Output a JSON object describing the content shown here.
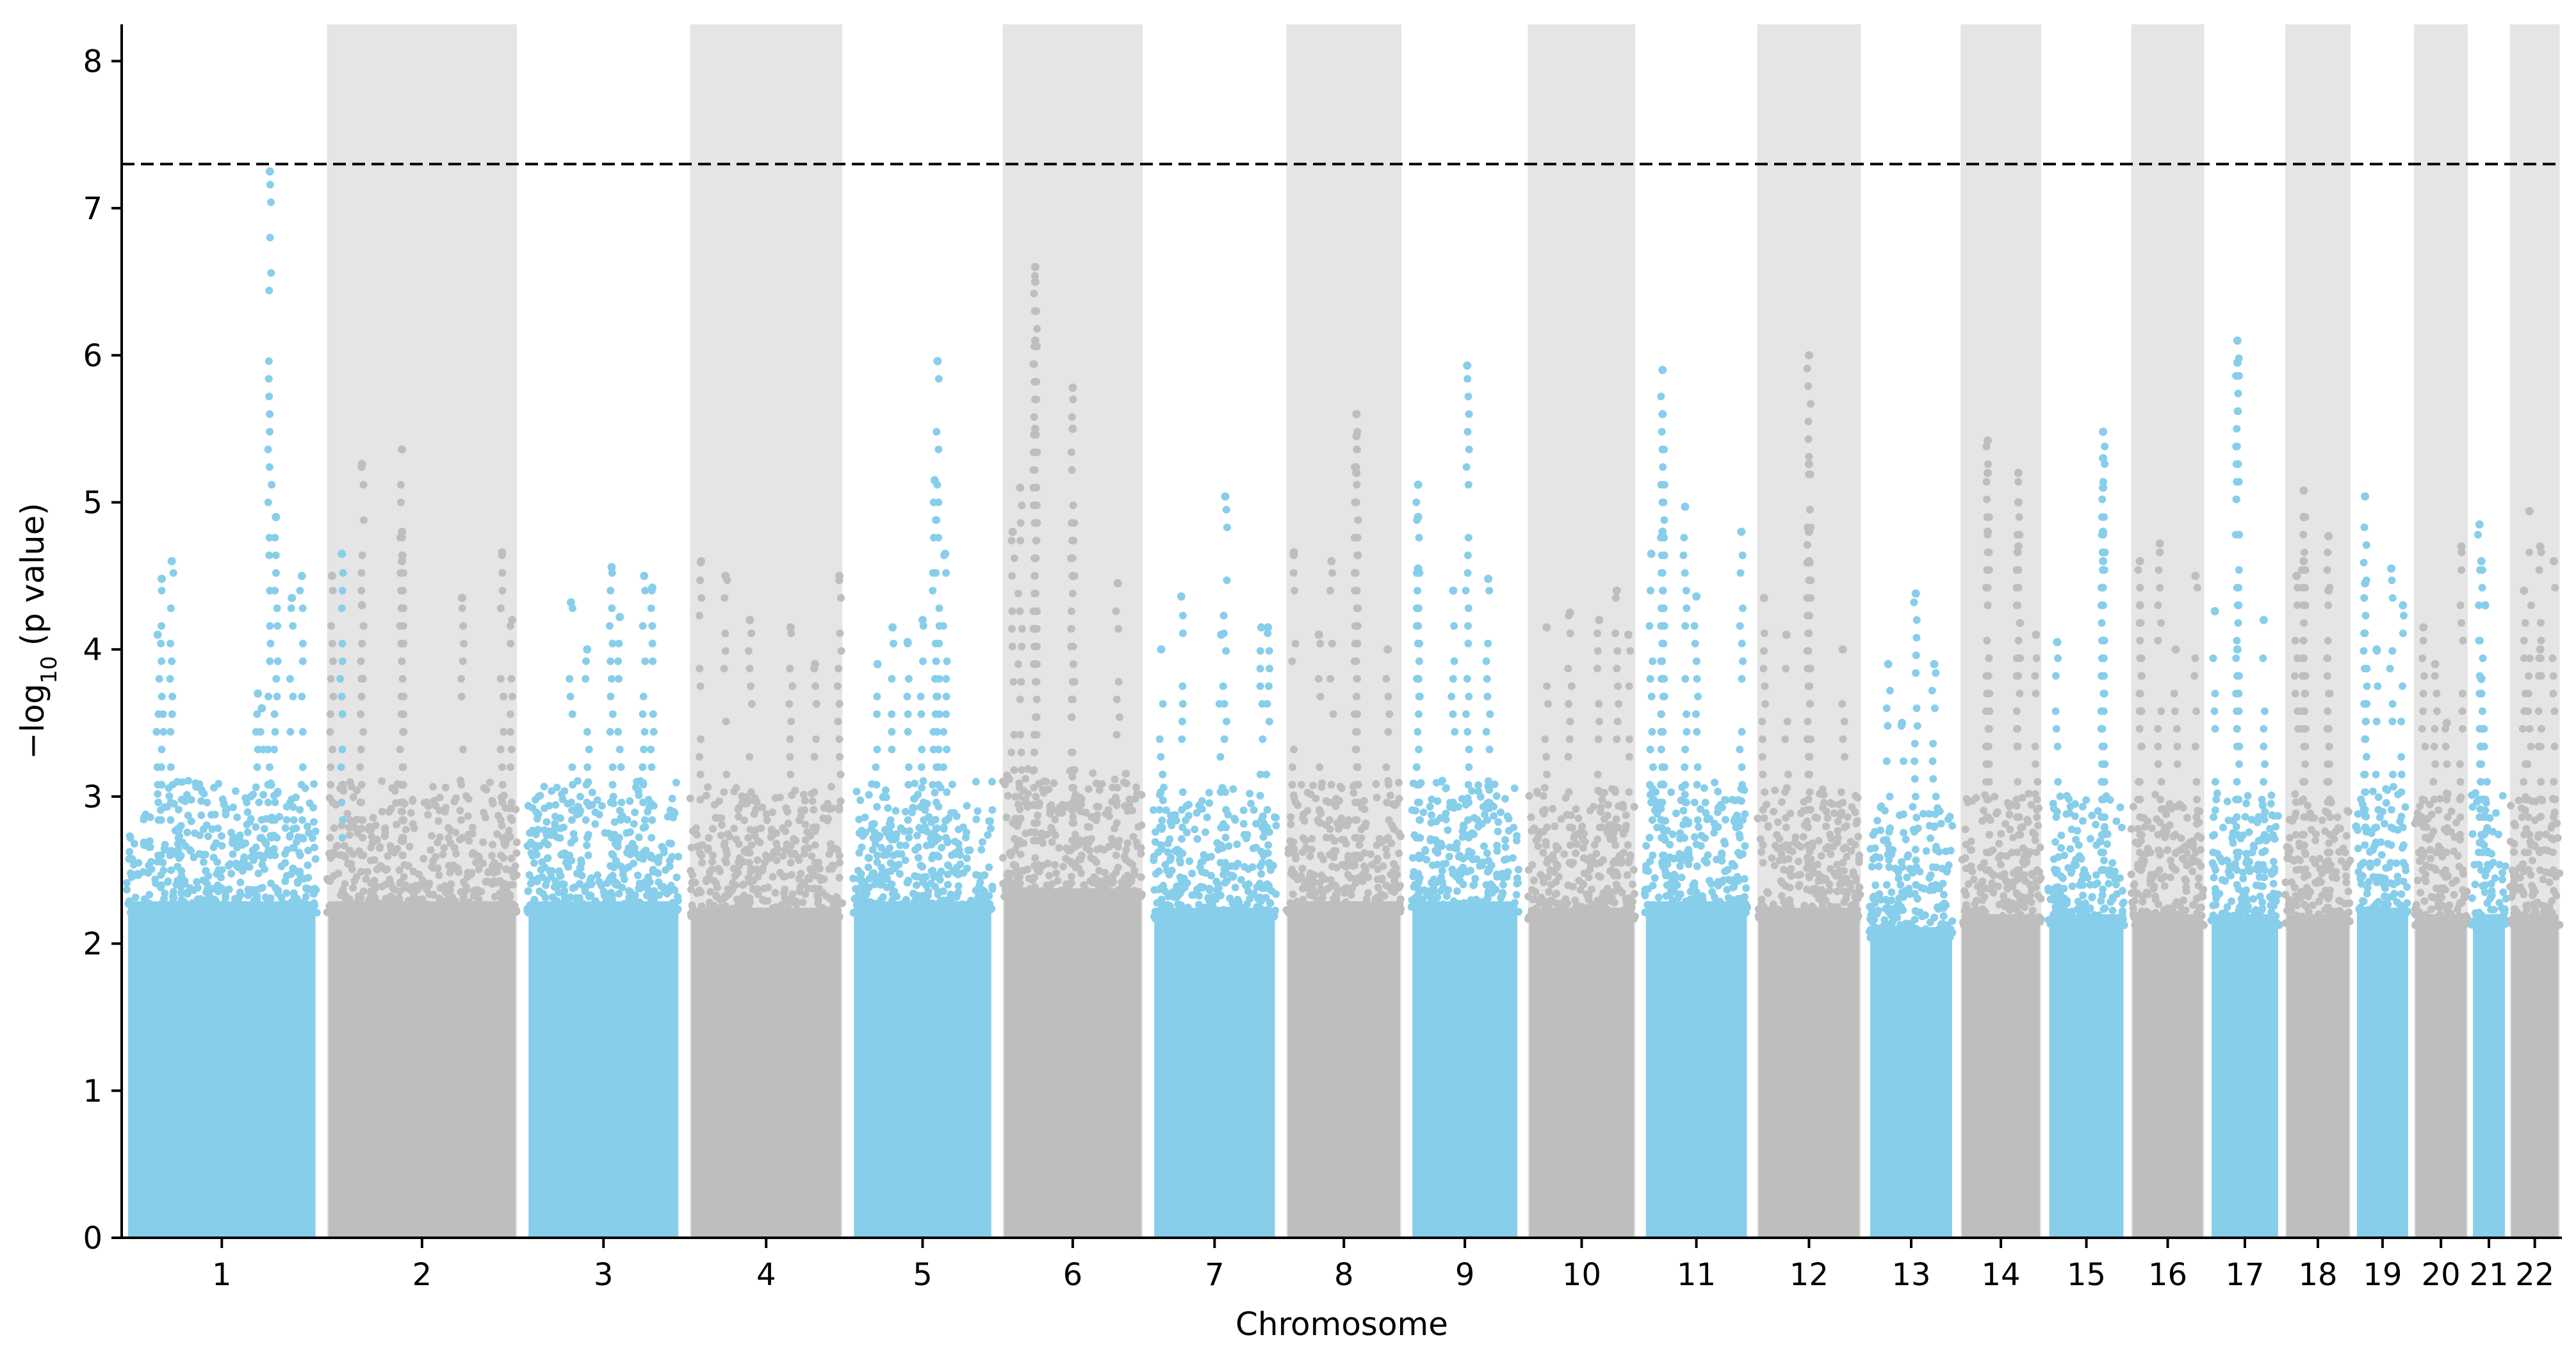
{
  "chart_data": {
    "type": "scatter",
    "subtype": "manhattan",
    "title": "",
    "xlabel": "Chromosome",
    "ylabel": "−log",
    "ylabel_sub": "10",
    "ylabel_suffix": " (p value)",
    "ylim": [
      0,
      8.25
    ],
    "yticks": [
      "0",
      "1",
      "2",
      "3",
      "4",
      "5",
      "6",
      "7",
      "8"
    ],
    "threshold": 7.3,
    "threshold_style": "dashed",
    "grid": false,
    "legend": "none",
    "colors": {
      "odd": "#87CEEB",
      "even": "#BEBEBE",
      "band": "#E5E5E5",
      "threshold": "#000000"
    },
    "chromosomes": [
      {
        "label": "1",
        "start": 0,
        "end": 240,
        "base_top": 2.6,
        "tops": [
          [
            0.74,
            7.25
          ],
          [
            0.25,
            4.6
          ],
          [
            0.2,
            4.48
          ],
          [
            0.77,
            4.9
          ],
          [
            0.9,
            4.5
          ],
          [
            0.85,
            4.35
          ],
          [
            0.68,
            3.7
          ],
          [
            0.7,
            3.6
          ],
          [
            1.1,
            4.65
          ],
          [
            0.18,
            4.1
          ]
        ]
      },
      {
        "label": "2",
        "start": 240,
        "end": 480,
        "base_top": 2.6,
        "tops": [
          [
            0.4,
            5.36
          ],
          [
            0.2,
            5.26
          ],
          [
            0.4,
            4.8
          ],
          [
            0.4,
            4.6
          ],
          [
            0.9,
            4.66
          ],
          [
            0.7,
            4.35
          ],
          [
            0.05,
            4.5
          ],
          [
            0.95,
            4.2
          ],
          [
            0.2,
            4.3
          ]
        ]
      },
      {
        "label": "3",
        "start": 480,
        "end": 675,
        "base_top": 2.6,
        "tops": [
          [
            0.55,
            4.56
          ],
          [
            0.75,
            4.5
          ],
          [
            0.3,
            4.32
          ],
          [
            0.6,
            4.22
          ],
          [
            0.8,
            4.42
          ],
          [
            0.4,
            4.0
          ]
        ]
      },
      {
        "label": "4",
        "start": 675,
        "end": 870,
        "base_top": 2.55,
        "tops": [
          [
            0.1,
            4.6
          ],
          [
            0.25,
            4.5
          ],
          [
            0.95,
            4.5
          ],
          [
            0.65,
            4.15
          ],
          [
            0.4,
            4.2
          ],
          [
            0.8,
            3.9
          ]
        ]
      },
      {
        "label": "5",
        "start": 870,
        "end": 1050,
        "base_top": 2.6,
        "tops": [
          [
            0.6,
            5.96
          ],
          [
            0.58,
            5.15
          ],
          [
            0.65,
            4.65
          ],
          [
            0.3,
            4.15
          ],
          [
            0.5,
            4.2
          ],
          [
            0.4,
            4.05
          ],
          [
            0.2,
            3.9
          ]
        ]
      },
      {
        "label": "6",
        "start": 1050,
        "end": 1230,
        "base_top": 2.7,
        "tops": [
          [
            0.25,
            6.6
          ],
          [
            0.25,
            6.5
          ],
          [
            0.25,
            6.1
          ],
          [
            0.5,
            5.78
          ],
          [
            0.5,
            5.5
          ],
          [
            0.25,
            5.5
          ],
          [
            0.15,
            5.1
          ],
          [
            0.8,
            4.45
          ],
          [
            0.1,
            4.8
          ],
          [
            0.5,
            4.5
          ]
        ]
      },
      {
        "label": "7",
        "start": 1230,
        "end": 1390,
        "base_top": 2.55,
        "tops": [
          [
            0.58,
            5.04
          ],
          [
            0.25,
            4.36
          ],
          [
            0.85,
            4.15
          ],
          [
            0.55,
            4.1
          ],
          [
            0.1,
            4.0
          ],
          [
            0.9,
            4.15
          ]
        ]
      },
      {
        "label": "8",
        "start": 1390,
        "end": 1540,
        "base_top": 2.6,
        "tops": [
          [
            0.6,
            5.6
          ],
          [
            0.6,
            5.45
          ],
          [
            0.6,
            5.2
          ],
          [
            0.4,
            4.6
          ],
          [
            0.1,
            4.66
          ],
          [
            0.85,
            4.0
          ],
          [
            0.3,
            4.1
          ]
        ]
      },
      {
        "label": "9",
        "start": 1540,
        "end": 1680,
        "base_top": 2.6,
        "tops": [
          [
            0.1,
            5.12
          ],
          [
            0.1,
            4.9
          ],
          [
            0.1,
            4.55
          ],
          [
            0.52,
            5.93
          ],
          [
            0.7,
            4.48
          ],
          [
            0.4,
            4.4
          ]
        ]
      },
      {
        "label": "10",
        "start": 1680,
        "end": 1820,
        "base_top": 2.55,
        "tops": [
          [
            0.8,
            4.4
          ],
          [
            0.65,
            4.2
          ],
          [
            0.4,
            4.25
          ],
          [
            0.2,
            4.15
          ],
          [
            0.9,
            4.1
          ]
        ]
      },
      {
        "label": "11",
        "start": 1820,
        "end": 1955,
        "base_top": 2.6,
        "tops": [
          [
            0.2,
            5.9
          ],
          [
            0.2,
            5.6
          ],
          [
            0.4,
            4.97
          ],
          [
            0.2,
            4.8
          ],
          [
            0.9,
            4.8
          ],
          [
            0.5,
            4.36
          ],
          [
            0.1,
            4.65
          ]
        ]
      },
      {
        "label": "12",
        "start": 1955,
        "end": 2090,
        "base_top": 2.55,
        "tops": [
          [
            0.5,
            6.0
          ],
          [
            0.5,
            5.26
          ],
          [
            0.5,
            4.8
          ],
          [
            0.5,
            4.6
          ],
          [
            0.1,
            4.35
          ],
          [
            0.8,
            4.0
          ],
          [
            0.3,
            4.1
          ]
        ]
      },
      {
        "label": "13",
        "start": 2090,
        "end": 2200,
        "base_top": 2.4,
        "tops": [
          [
            0.55,
            4.38
          ],
          [
            0.25,
            3.9
          ],
          [
            0.75,
            3.9
          ],
          [
            0.4,
            3.5
          ]
        ]
      },
      {
        "label": "14",
        "start": 2200,
        "end": 2305,
        "base_top": 2.5,
        "tops": [
          [
            0.35,
            5.42
          ],
          [
            0.35,
            5.2
          ],
          [
            0.7,
            5.2
          ],
          [
            0.7,
            5.0
          ],
          [
            0.35,
            4.8
          ],
          [
            0.7,
            4.7
          ],
          [
            0.9,
            4.1
          ]
        ]
      },
      {
        "label": "15",
        "start": 2305,
        "end": 2405,
        "base_top": 2.5,
        "tops": [
          [
            0.7,
            5.48
          ],
          [
            0.7,
            5.3
          ],
          [
            0.7,
            5.1
          ],
          [
            0.7,
            4.8
          ],
          [
            0.15,
            4.05
          ],
          [
            0.7,
            4.6
          ]
        ]
      },
      {
        "label": "16",
        "start": 2405,
        "end": 2500,
        "base_top": 2.5,
        "tops": [
          [
            0.15,
            4.6
          ],
          [
            0.4,
            4.72
          ],
          [
            0.85,
            4.5
          ],
          [
            0.15,
            4.3
          ],
          [
            0.6,
            4.0
          ]
        ]
      },
      {
        "label": "17",
        "start": 2500,
        "end": 2590,
        "base_top": 2.5,
        "tops": [
          [
            0.4,
            6.1
          ],
          [
            0.4,
            5.95
          ],
          [
            0.1,
            4.26
          ],
          [
            0.4,
            4.0
          ],
          [
            0.75,
            4.2
          ]
        ]
      },
      {
        "label": "18",
        "start": 2590,
        "end": 2675,
        "base_top": 2.5,
        "tops": [
          [
            0.3,
            5.08
          ],
          [
            0.3,
            4.9
          ],
          [
            0.65,
            4.77
          ],
          [
            0.2,
            4.5
          ],
          [
            0.65,
            4.4
          ],
          [
            0.3,
            4.6
          ]
        ]
      },
      {
        "label": "19",
        "start": 2675,
        "end": 2745,
        "base_top": 2.55,
        "tops": [
          [
            0.2,
            5.04
          ],
          [
            0.2,
            4.45
          ],
          [
            0.65,
            4.55
          ],
          [
            0.4,
            4.0
          ],
          [
            0.85,
            4.3
          ]
        ]
      },
      {
        "label": "20",
        "start": 2745,
        "end": 2815,
        "base_top": 2.5,
        "tops": [
          [
            0.2,
            4.15
          ],
          [
            0.85,
            4.7
          ],
          [
            0.4,
            3.9
          ],
          [
            0.6,
            3.5
          ]
        ]
      },
      {
        "label": "21",
        "start": 2815,
        "end": 2860,
        "base_top": 2.5,
        "tops": [
          [
            0.25,
            4.85
          ],
          [
            0.3,
            4.6
          ],
          [
            0.4,
            4.3
          ],
          [
            0.3,
            3.8
          ]
        ]
      },
      {
        "label": "22",
        "start": 2860,
        "end": 2925,
        "base_top": 2.5,
        "tops": [
          [
            0.4,
            4.94
          ],
          [
            0.6,
            4.7
          ],
          [
            0.85,
            4.6
          ],
          [
            0.3,
            4.4
          ],
          [
            0.6,
            4.0
          ]
        ]
      }
    ]
  }
}
